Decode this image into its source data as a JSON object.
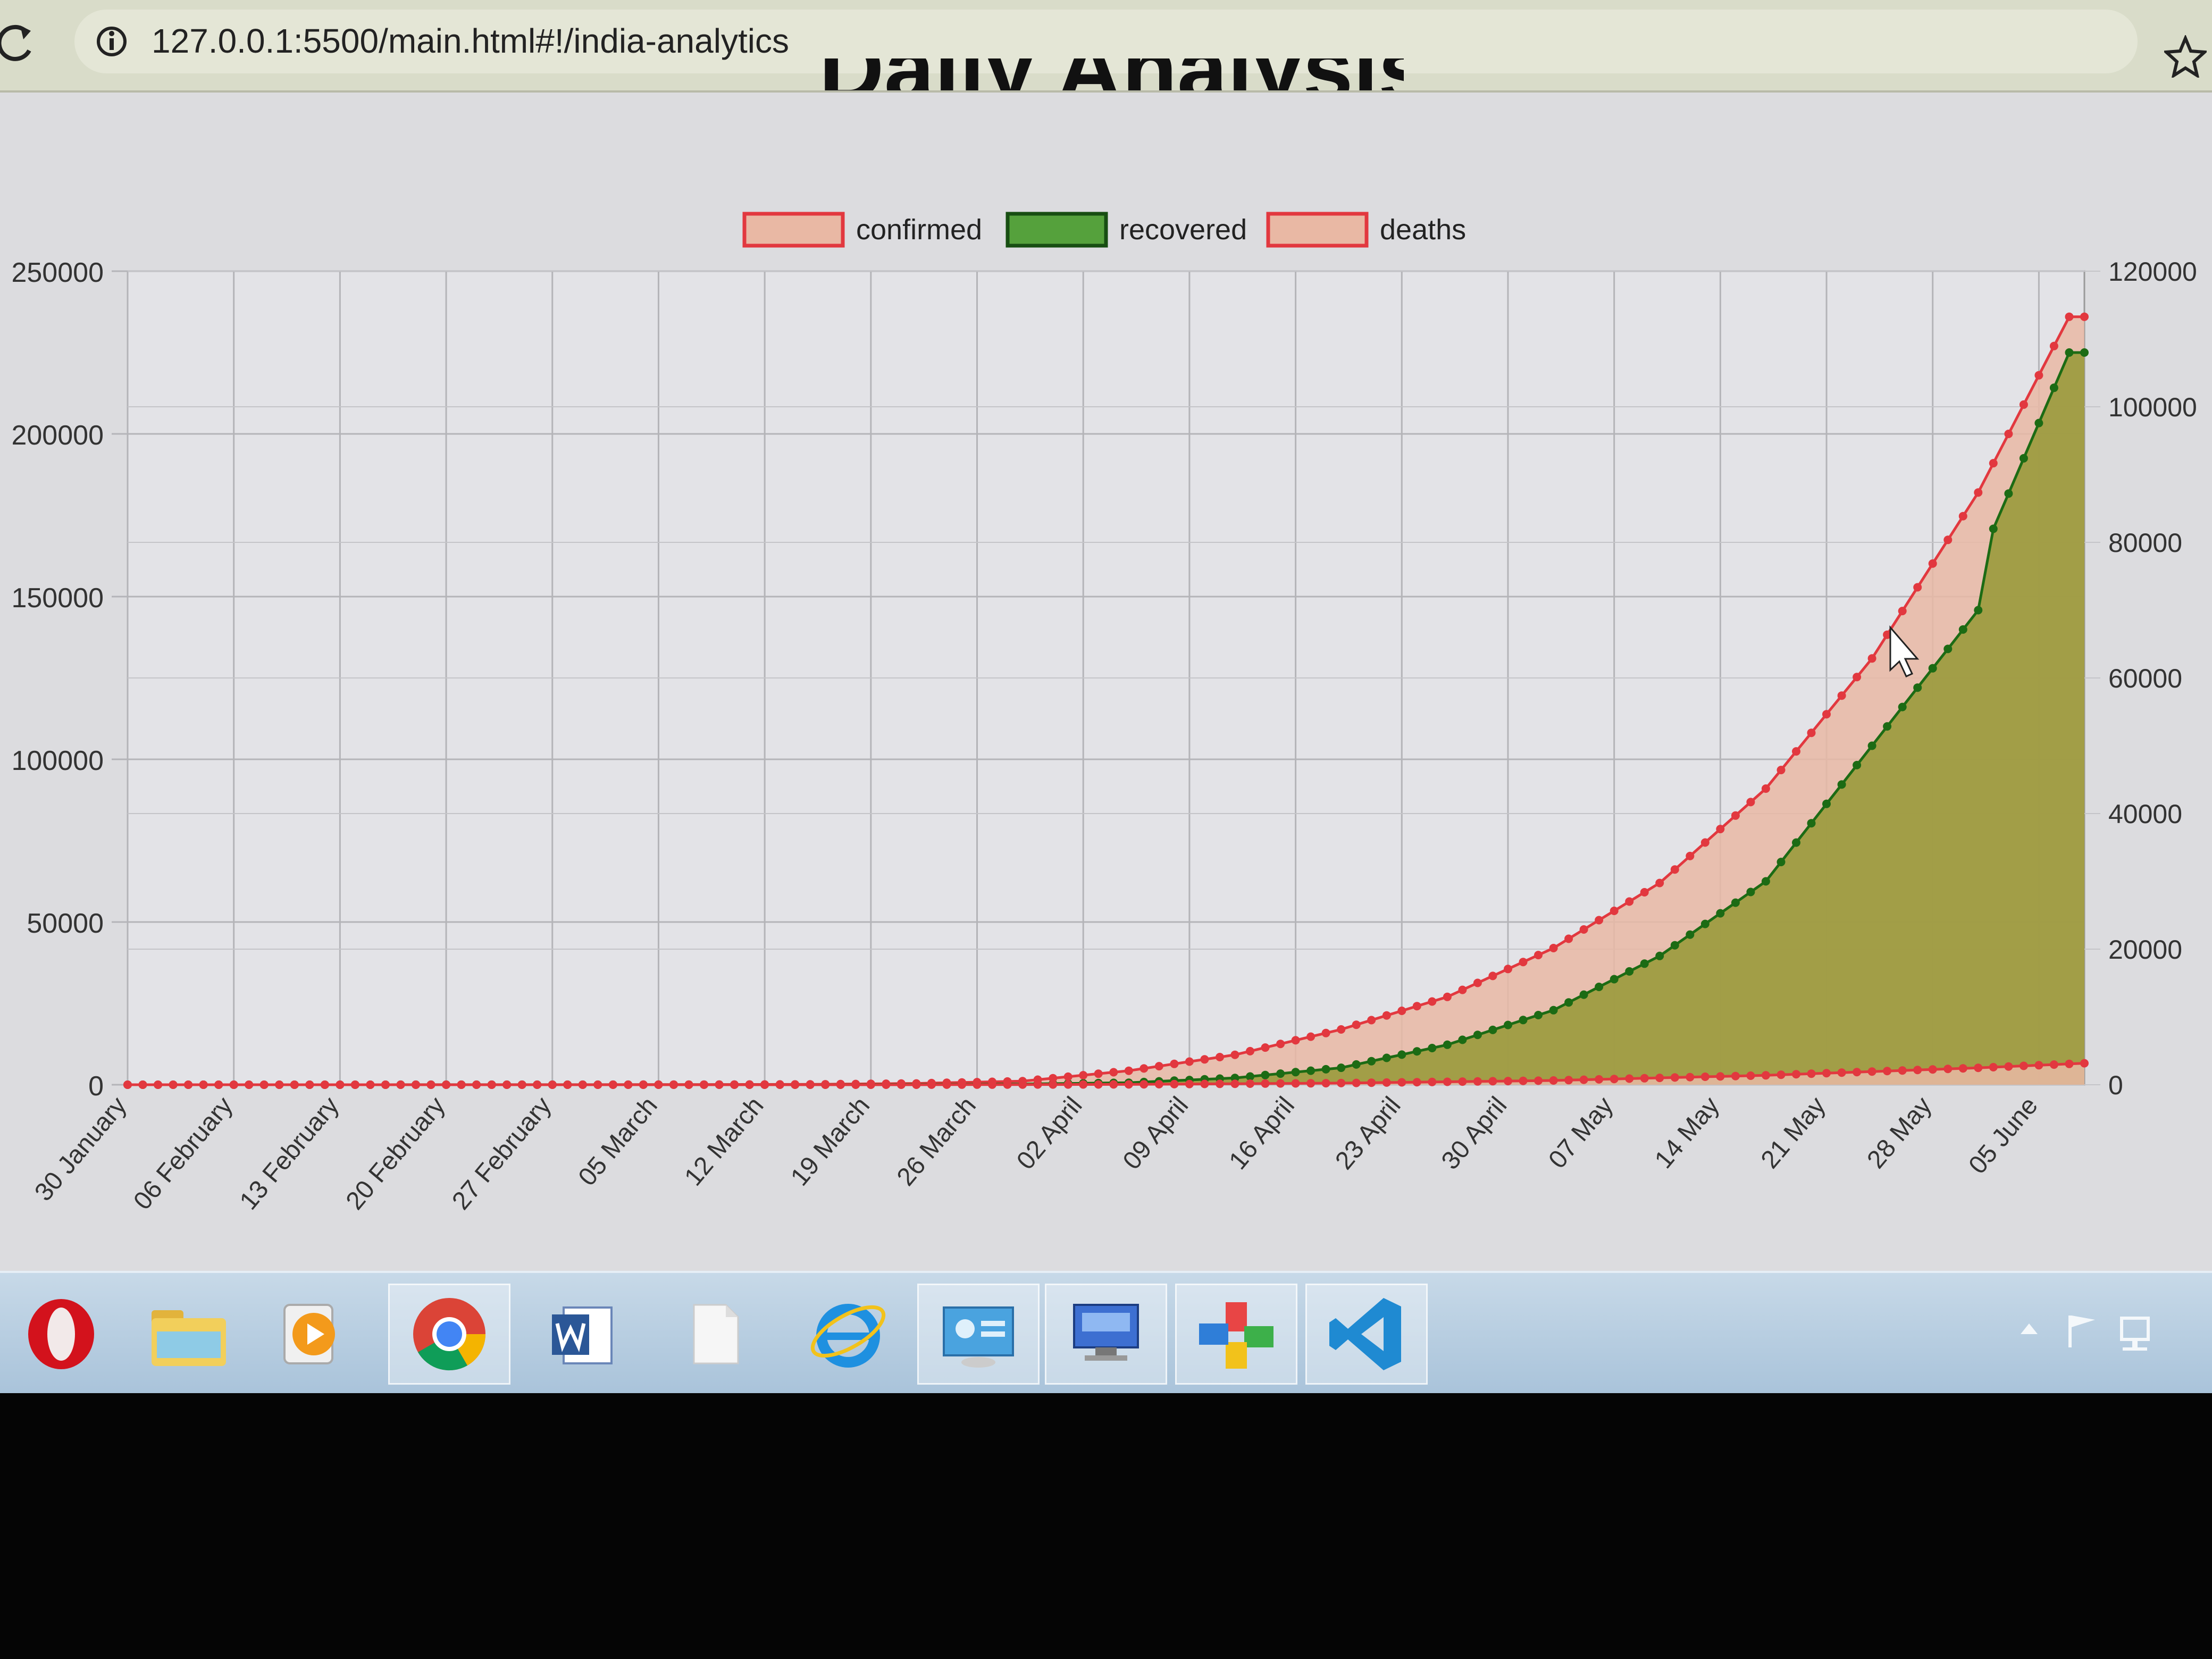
{
  "browser": {
    "url": "127.0.0.1:5500/main.html#!/india-analytics",
    "reload_icon": "reload-icon",
    "info_icon": "info-icon",
    "bookmark_icon": "star-icon"
  },
  "page": {
    "title": "Daily Analysis"
  },
  "chart_data": {
    "type": "line",
    "legend": {
      "placement": "top",
      "entries": [
        {
          "label": "confirmed",
          "fill": "#e9b8a4",
          "border": "#e2383f"
        },
        {
          "label": "recovered",
          "fill": "#55a13c",
          "border": "#174e12"
        },
        {
          "label": "deaths",
          "fill": "#e9b8a4",
          "border": "#e2383f"
        }
      ]
    },
    "x_tick_labels": [
      "30 January",
      "06 February",
      "13 February",
      "20 February",
      "27 February",
      "05 March",
      "12 March",
      "19 March",
      "26 March",
      "02 April",
      "09 April",
      "16 April",
      "23 April",
      "30 April",
      "07 May",
      "14 May",
      "21 May",
      "28 May",
      "05 June"
    ],
    "x_start": "2020-01-30",
    "x_end": "2020-06-07",
    "left_axis": {
      "ticks": [
        "0",
        "50000",
        "100000",
        "150000",
        "200000",
        "250000"
      ],
      "range": [
        0,
        250000
      ]
    },
    "right_axis": {
      "ticks": [
        "0",
        "20000",
        "40000",
        "60000",
        "80000",
        "100000",
        "120000"
      ],
      "range": [
        0,
        120000
      ]
    },
    "grid": true,
    "series": [
      {
        "name": "confirmed",
        "axis": "left",
        "color": "#e2383f",
        "fill": "#e9b8a4",
        "points": [
          [
            "2020-01-30",
            0
          ],
          [
            "2020-03-01",
            3
          ],
          [
            "2020-03-15",
            110
          ],
          [
            "2020-03-22",
            400
          ],
          [
            "2020-03-29",
            1100
          ],
          [
            "2020-04-05",
            4300
          ],
          [
            "2020-04-12",
            9200
          ],
          [
            "2020-04-19",
            17000
          ],
          [
            "2020-04-26",
            27000
          ],
          [
            "2020-05-03",
            42000
          ],
          [
            "2020-05-10",
            62000
          ],
          [
            "2020-05-17",
            91000
          ],
          [
            "2020-05-24",
            131000
          ],
          [
            "2020-05-31",
            182000
          ],
          [
            "2020-06-06",
            236000
          ],
          [
            "2020-06-07",
            236000
          ]
        ]
      },
      {
        "name": "recovered",
        "axis": "right",
        "color": "#1c6b14",
        "fill": "#9a9a3c",
        "points": [
          [
            "2020-01-30",
            0
          ],
          [
            "2020-03-15",
            10
          ],
          [
            "2020-03-29",
            100
          ],
          [
            "2020-04-05",
            300
          ],
          [
            "2020-04-12",
            1000
          ],
          [
            "2020-04-19",
            2500
          ],
          [
            "2020-04-26",
            5900
          ],
          [
            "2020-05-03",
            11000
          ],
          [
            "2020-05-10",
            19000
          ],
          [
            "2020-05-17",
            30000
          ],
          [
            "2020-05-24",
            50000
          ],
          [
            "2020-05-31",
            70000
          ],
          [
            "2020-06-01",
            82000
          ],
          [
            "2020-06-06",
            108000
          ],
          [
            "2020-06-07",
            108000
          ]
        ]
      },
      {
        "name": "deaths",
        "axis": "left",
        "color": "#e2383f",
        "fill": "#e9b8a4",
        "points": [
          [
            "2020-01-30",
            0
          ],
          [
            "2020-03-22",
            7
          ],
          [
            "2020-04-05",
            100
          ],
          [
            "2020-04-19",
            500
          ],
          [
            "2020-05-03",
            1300
          ],
          [
            "2020-05-17",
            2900
          ],
          [
            "2020-05-31",
            5200
          ],
          [
            "2020-06-07",
            6600
          ]
        ]
      }
    ]
  },
  "taskbar": {
    "apps": [
      {
        "name": "opera",
        "icon": "opera-icon"
      },
      {
        "name": "file-explorer",
        "icon": "folder-icon"
      },
      {
        "name": "media-player",
        "icon": "media-player-icon"
      },
      {
        "name": "chrome",
        "icon": "chrome-icon"
      },
      {
        "name": "word",
        "icon": "word-icon"
      },
      {
        "name": "blank-document",
        "icon": "document-icon"
      },
      {
        "name": "internet-explorer",
        "icon": "ie-icon"
      },
      {
        "name": "control-panel",
        "icon": "control-panel-icon"
      },
      {
        "name": "remote-desktop",
        "icon": "remote-desktop-icon"
      },
      {
        "name": "paint",
        "icon": "paint-icon"
      },
      {
        "name": "vscode",
        "icon": "vscode-icon"
      }
    ],
    "tray_icons": [
      "chevron-up-icon",
      "flag-icon",
      "network-icon"
    ]
  }
}
